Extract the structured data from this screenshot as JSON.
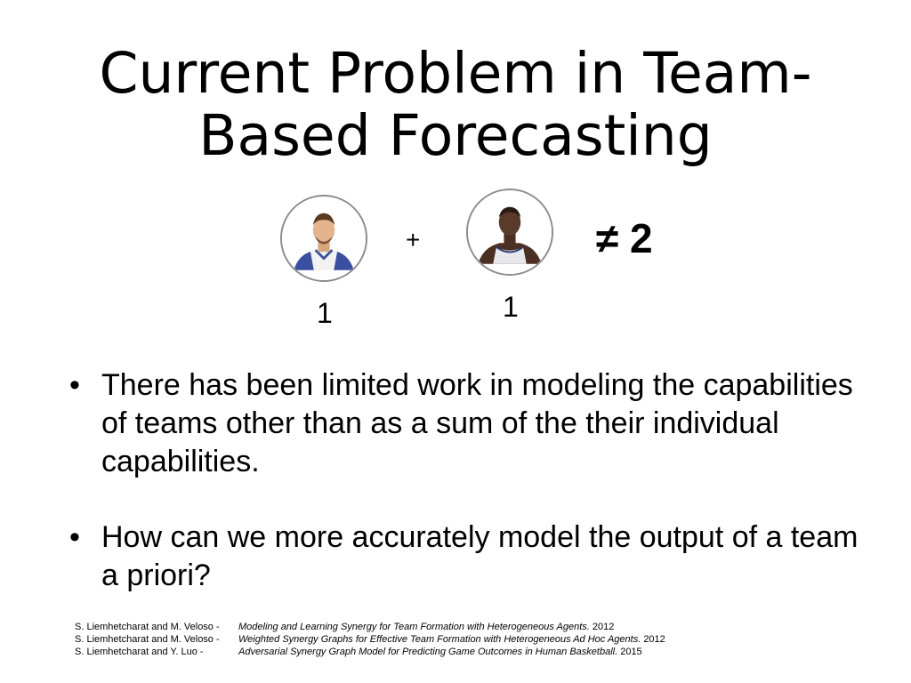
{
  "slide": {
    "title_line1": "Current Problem in Team-",
    "title_line2": "Based Forecasting"
  },
  "equation": {
    "player1": {
      "icon": "player-avatar-icon",
      "value": "1"
    },
    "player2": {
      "icon": "player-avatar-icon",
      "value": "1"
    },
    "plus": "+",
    "not_equal": "≠ 2"
  },
  "bullets": [
    {
      "marker": "•",
      "text": "There has been limited work in modeling the capabilities of teams other than as a sum of the their individual capabilities."
    },
    {
      "marker": "•",
      "text": "How can we more accurately model the output of a team a priori?"
    }
  ],
  "references": [
    {
      "authors": "S. Liemhetcharat and M. Veloso -",
      "work": "Modeling and Learning Synergy for Team Formation with Heterogeneous Agents.",
      "year": "2012"
    },
    {
      "authors": "S. Liemhetcharat and M. Veloso -",
      "work": "Weighted Synergy Graphs for Effective Team Formation with Heterogeneous Ad Hoc Agents.",
      "year": "2012"
    },
    {
      "authors": "S. Liemhetcharat and Y. Luo -",
      "work": "Adversarial Synergy Graph Model for Predicting Game Outcomes in Human Basketball.",
      "year": "2015"
    }
  ],
  "colors": {
    "background": "#ffffff",
    "text": "#000000",
    "avatar_border": "#8c8c8c",
    "jersey_1": "#3a4fa0",
    "jersey_2": "#e8e8ec"
  }
}
